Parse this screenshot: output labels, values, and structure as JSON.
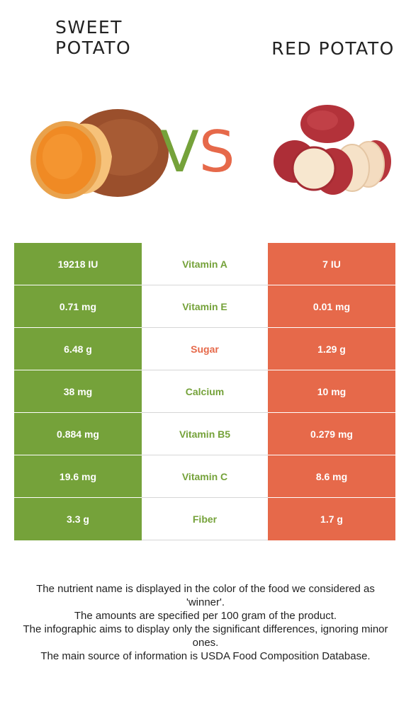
{
  "header": {
    "left_title": "SWEET\nPOTATO",
    "right_title": "RED POTATO",
    "vs_v": "V",
    "vs_s": "S"
  },
  "colors": {
    "winner_left": "#75a23a",
    "winner_right": "#e6694a"
  },
  "rows": [
    {
      "left": "19218 IU",
      "nutrient": "Vitamin A",
      "right": "7 IU",
      "winner": "left"
    },
    {
      "left": "0.71 mg",
      "nutrient": "Vitamin E",
      "right": "0.01 mg",
      "winner": "left"
    },
    {
      "left": "6.48 g",
      "nutrient": "Sugar",
      "right": "1.29 g",
      "winner": "right"
    },
    {
      "left": "38 mg",
      "nutrient": "Calcium",
      "right": "10 mg",
      "winner": "left"
    },
    {
      "left": "0.884 mg",
      "nutrient": "Vitamin B5",
      "right": "0.279 mg",
      "winner": "left"
    },
    {
      "left": "19.6 mg",
      "nutrient": "Vitamin C",
      "right": "8.6 mg",
      "winner": "left"
    },
    {
      "left": "3.3 g",
      "nutrient": "Fiber",
      "right": "1.7 g",
      "winner": "left"
    }
  ],
  "footer": {
    "line1": "The nutrient name is displayed in the color of the food we considered as 'winner'.",
    "line2": "The amounts are specified per 100 gram of the product.",
    "line3": "The infographic aims to display only the significant differences, ignoring minor ones.",
    "line4": "The main source of information is USDA Food Composition Database."
  }
}
